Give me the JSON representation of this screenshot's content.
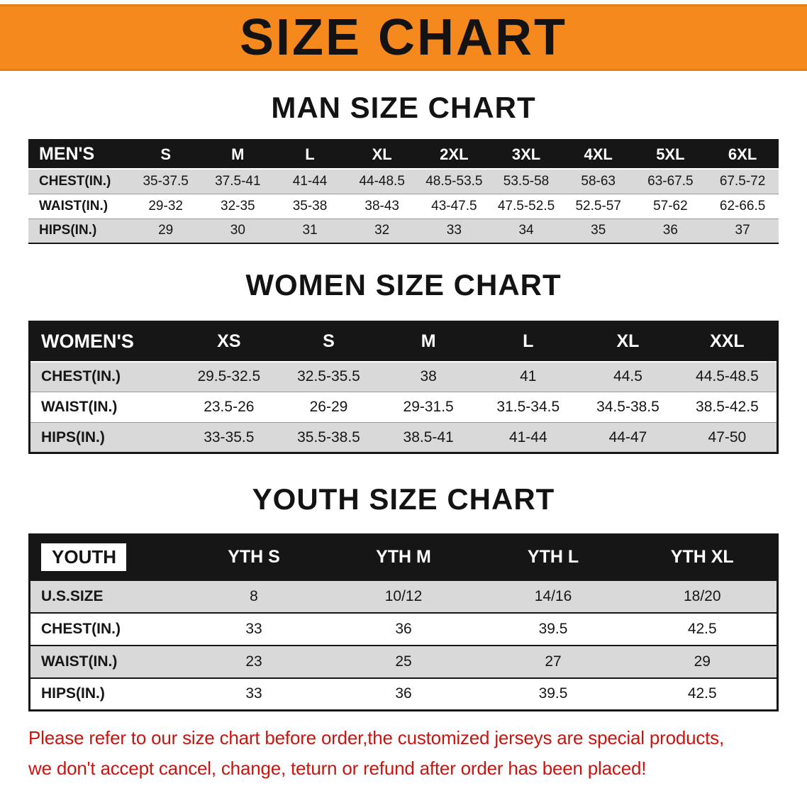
{
  "banner": {
    "title": "SIZE CHART",
    "bg_color": "#f6891d"
  },
  "sections": [
    {
      "id": "men",
      "heading": "MAN SIZE CHART",
      "table": {
        "header": [
          "MEN'S",
          "S",
          "M",
          "L",
          "XL",
          "2XL",
          "3XL",
          "4XL",
          "5XL",
          "6XL"
        ],
        "rows": [
          {
            "label": "CHEST(IN.)",
            "values": [
              "35-37.5",
              "37.5-41",
              "41-44",
              "44-48.5",
              "48.5-53.5",
              "53.5-58",
              "58-63",
              "63-67.5",
              "67.5-72"
            ]
          },
          {
            "label": "WAIST(IN.)",
            "values": [
              "29-32",
              "32-35",
              "35-38",
              "38-43",
              "43-47.5",
              "47.5-52.5",
              "52.5-57",
              "57-62",
              "62-66.5"
            ]
          },
          {
            "label": "HIPS(IN.)",
            "values": [
              "29",
              "30",
              "31",
              "32",
              "33",
              "34",
              "35",
              "36",
              "37"
            ]
          }
        ]
      }
    },
    {
      "id": "women",
      "heading": "WOMEN SIZE CHART",
      "table": {
        "header": [
          "WOMEN'S",
          "XS",
          "S",
          "M",
          "L",
          "XL",
          "XXL"
        ],
        "rows": [
          {
            "label": "CHEST(IN.)",
            "values": [
              "29.5-32.5",
              "32.5-35.5",
              "38",
              "41",
              "44.5",
              "44.5-48.5"
            ]
          },
          {
            "label": "WAIST(IN.)",
            "values": [
              "23.5-26",
              "26-29",
              "29-31.5",
              "31.5-34.5",
              "34.5-38.5",
              "38.5-42.5"
            ]
          },
          {
            "label": "HIPS(IN.)",
            "values": [
              "33-35.5",
              "35.5-38.5",
              "38.5-41",
              "41-44",
              "44-47",
              "47-50"
            ]
          }
        ]
      }
    },
    {
      "id": "youth",
      "heading": "YOUTH SIZE CHART",
      "table": {
        "header": [
          "YOUTH",
          "YTH S",
          "YTH M",
          "YTH L",
          "YTH XL"
        ],
        "rows": [
          {
            "label": "U.S.SIZE",
            "values": [
              "8",
              "10/12",
              "14/16",
              "18/20"
            ]
          },
          {
            "label": "CHEST(IN.)",
            "values": [
              "33",
              "36",
              "39.5",
              "42.5"
            ]
          },
          {
            "label": "WAIST(IN.)",
            "values": [
              "23",
              "25",
              "27",
              "29"
            ]
          },
          {
            "label": "HIPS(IN.)",
            "values": [
              "33",
              "36",
              "39.5",
              "42.5"
            ]
          }
        ]
      }
    }
  ],
  "disclaimer": {
    "line1": "Please refer to our size chart before order,the customized jerseys are special products,",
    "line2": "we don't accept cancel, change, teturn or refund after order has been placed!",
    "color": "#c9140f"
  }
}
